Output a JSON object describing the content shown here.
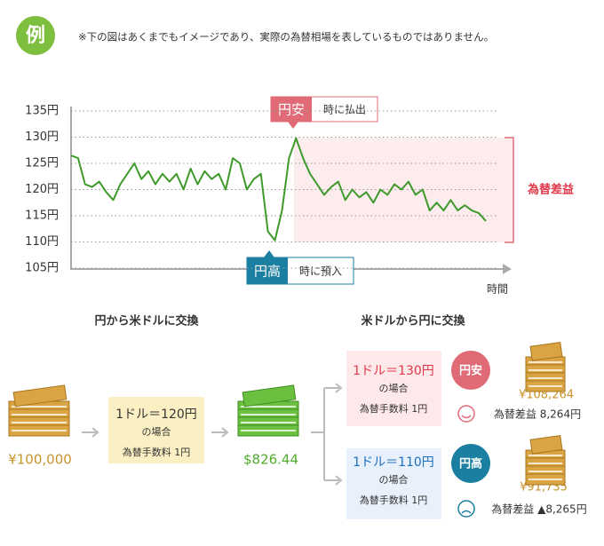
{
  "badge": "例",
  "note": "※下の図はあくまでもイメージであり、実際の為替相場を表しているものではありません。",
  "chart_data": {
    "type": "line",
    "color": "#3e9a2a",
    "values": [
      126.5,
      126,
      121,
      120.5,
      121.5,
      119.5,
      118,
      121,
      123,
      125,
      122,
      123.5,
      121,
      123,
      121.5,
      123,
      120,
      124,
      121,
      123.5,
      122,
      123,
      120,
      126,
      125,
      120,
      122,
      123,
      112,
      110.3,
      116,
      126,
      129.8,
      126,
      123,
      121,
      119,
      120.5,
      121.5,
      118,
      120,
      118.5,
      119.5,
      117.5,
      120,
      119,
      121,
      120,
      121.5,
      119,
      120,
      116,
      117.5,
      116,
      118,
      116,
      117,
      116,
      115.5,
      114
    ],
    "ylim": [
      105,
      135
    ],
    "yticks": [
      {
        "value": 105,
        "label": "105円"
      },
      {
        "value": 110,
        "label": "110円"
      },
      {
        "value": 115,
        "label": "115円"
      },
      {
        "value": 120,
        "label": "120円"
      },
      {
        "value": 125,
        "label": "125円"
      },
      {
        "value": 130,
        "label": "130円"
      },
      {
        "value": 135,
        "label": "135円"
      }
    ],
    "grid": true,
    "x_label": "時間",
    "annotations": {
      "high": {
        "badge": "円安",
        "text": "時に払出"
      },
      "low": {
        "badge": "円高",
        "text": "時に預入"
      },
      "gain": "為替差益"
    }
  },
  "flow": {
    "left_title": "円から米ドルに交換",
    "right_title": "米ドルから円に交換",
    "start": "¥100,000",
    "exchange": {
      "rate": "1ドル＝120円",
      "case": "の場合",
      "fee": "為替手数料 1円"
    },
    "dollars": "$826.44",
    "weak": {
      "rate": "1ドル＝130円",
      "case": "の場合",
      "fee": "為替手数料 1円",
      "badge": "円安",
      "amount": "¥108,264",
      "result": "為替差益 8,264円"
    },
    "strong": {
      "rate": "1ドル＝110円",
      "case": "の場合",
      "fee": "為替手数料 1円",
      "badge": "円高",
      "amount": "¥91,735",
      "result": "為替差益 ▲8,265円"
    }
  }
}
